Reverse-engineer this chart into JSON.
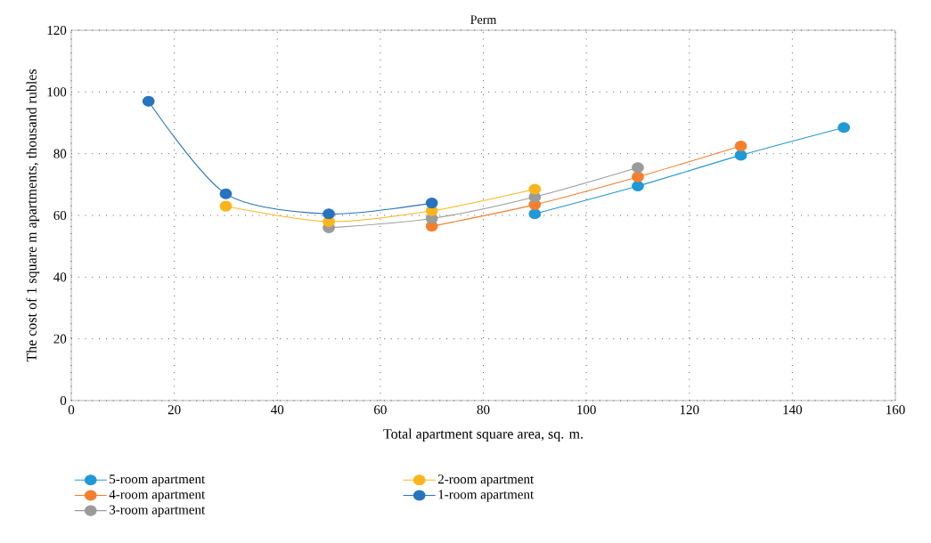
{
  "chart_data": {
    "type": "line",
    "title": "Perm",
    "xlabel": "Total apartment square area, sq. m.",
    "ylabel": "The cost of 1 square m apartments, thousand rubles",
    "xlim": [
      0,
      160
    ],
    "xticks": [
      0,
      20,
      40,
      60,
      80,
      100,
      120,
      140,
      160
    ],
    "ylim": [
      0,
      120
    ],
    "yticks": [
      0,
      20,
      40,
      60,
      80,
      100,
      120
    ],
    "grid": true,
    "legend": "bottom",
    "marker": "circle",
    "line_style": "solid",
    "series": [
      {
        "name": "5-room apartment",
        "color": "#1f9ad6",
        "x": [
          90,
          110,
          130,
          150
        ],
        "values": [
          60.5,
          69.5,
          79.5,
          88.5
        ]
      },
      {
        "name": "4-room apartment",
        "color": "#f47f2e",
        "x": [
          70,
          90,
          110,
          130
        ],
        "values": [
          56.5,
          63.5,
          72.5,
          82.5
        ]
      },
      {
        "name": "3-room apartment",
        "color": "#9b9b9b",
        "x": [
          50,
          70,
          90,
          110
        ],
        "values": [
          56,
          59,
          66,
          75.5
        ]
      },
      {
        "name": "2-room apartment",
        "color": "#fbb51b",
        "x": [
          30,
          50,
          70,
          90
        ],
        "values": [
          63,
          58,
          61.5,
          68.5
        ]
      },
      {
        "name": "1-room apartment",
        "color": "#2873be",
        "x": [
          15,
          30,
          50,
          70
        ],
        "values": [
          97,
          67,
          60.5,
          64
        ]
      }
    ]
  }
}
